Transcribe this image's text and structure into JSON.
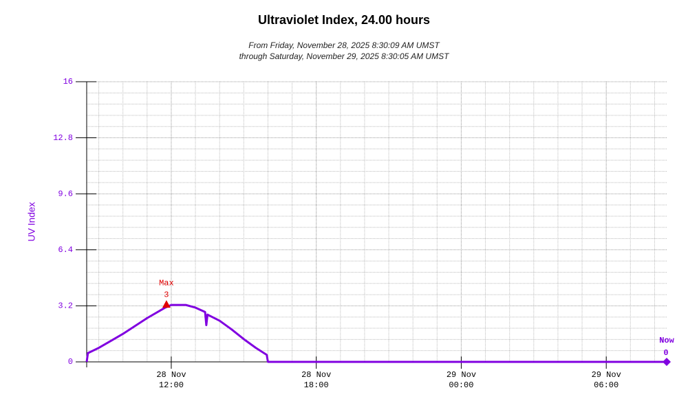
{
  "chart_data": {
    "type": "line",
    "title": "Ultraviolet Index, 24.00 hours",
    "subtitle": [
      "From Friday, November 28, 2025 8:30:09 AM UMST",
      "through Saturday, November 29, 2025 8:30:05 AM UMST"
    ],
    "y_label": "UV Index",
    "xlim": [
      8.5,
      32.5
    ],
    "xticks": [
      {
        "value": 12,
        "label": [
          "28 Nov",
          "12:00"
        ]
      },
      {
        "value": 18,
        "label": [
          "28 Nov",
          "18:00"
        ]
      },
      {
        "value": 24,
        "label": [
          "29 Nov",
          "00:00"
        ]
      },
      {
        "value": 30,
        "label": [
          "29 Nov",
          "06:00"
        ]
      }
    ],
    "ylim": [
      0,
      16
    ],
    "yticks": [
      0,
      3.2,
      6.4,
      9.6,
      12.8,
      16
    ],
    "grid": true,
    "series": [
      {
        "name": "UV Index",
        "color": "#8000e0",
        "x": [
          8.5,
          8.55,
          9,
          9.5,
          10,
          10.5,
          11,
          11.5,
          11.75,
          12,
          12.6,
          13,
          13.4,
          13.45,
          13.5,
          14,
          14.5,
          15,
          15.5,
          15.95,
          16,
          20,
          24,
          28,
          32.5
        ],
        "values": [
          0,
          0.5,
          0.8,
          1.2,
          1.6,
          2.05,
          2.5,
          2.9,
          3.1,
          3.25,
          3.25,
          3.1,
          2.85,
          2.1,
          2.7,
          2.35,
          1.85,
          1.3,
          0.8,
          0.4,
          0,
          0,
          0,
          0,
          0
        ]
      }
    ],
    "annotations": [
      {
        "label": "Max",
        "x": 11.8,
        "y": 3.25,
        "value_label": "3",
        "color": "#e00000"
      },
      {
        "label": "Now",
        "x": 32.5,
        "y": 0,
        "value_label": "0",
        "color": "#8000e0"
      }
    ]
  }
}
